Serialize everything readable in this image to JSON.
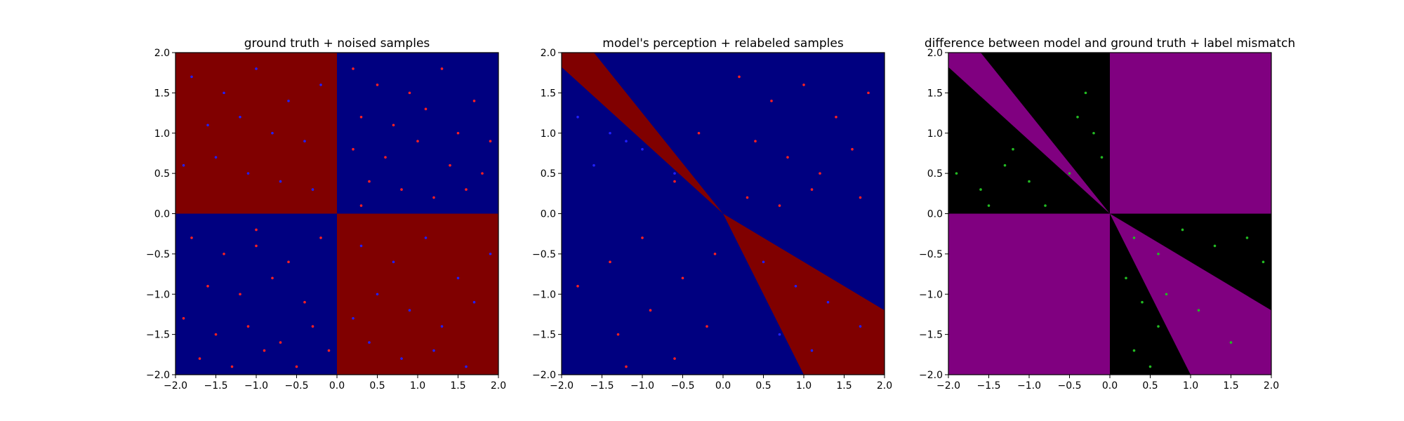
{
  "chart_data": [
    {
      "type": "heatmap",
      "title": "ground truth + noised samples",
      "xlim": [
        -2,
        2
      ],
      "ylim": [
        -2,
        2
      ],
      "xticks": [
        -2.0,
        -1.5,
        -1.0,
        -0.5,
        0.0,
        0.5,
        1.0,
        1.5,
        2.0
      ],
      "yticks": [
        -2.0,
        -1.5,
        -1.0,
        -0.5,
        0.0,
        0.5,
        1.0,
        1.5,
        2.0
      ],
      "xtick_labels": [
        "−2.0",
        "−1.5",
        "−1.0",
        "−0.5",
        "0.0",
        "0.5",
        "1.0",
        "1.5",
        "2.0"
      ],
      "ytick_labels": [
        "−2.0",
        "−1.5",
        "−1.0",
        "−0.5",
        "0.0",
        "0.5",
        "1.0",
        "1.5",
        "2.0"
      ],
      "background": "#000080",
      "regions": [
        {
          "color": "#800000",
          "polygon": [
            [
              -2,
              0
            ],
            [
              0,
              0
            ],
            [
              0,
              2
            ],
            [
              -2,
              2
            ]
          ]
        },
        {
          "color": "#800000",
          "polygon": [
            [
              0,
              -2
            ],
            [
              2,
              -2
            ],
            [
              2,
              0
            ],
            [
              0,
              0
            ]
          ]
        }
      ],
      "series": [
        {
          "color": "#ff2020",
          "values": [
            [
              0.2,
              1.8
            ],
            [
              0.5,
              1.6
            ],
            [
              0.9,
              1.5
            ],
            [
              1.3,
              1.8
            ],
            [
              1.7,
              1.4
            ],
            [
              0.3,
              1.2
            ],
            [
              0.7,
              1.1
            ],
            [
              1.1,
              1.3
            ],
            [
              1.5,
              1.0
            ],
            [
              1.9,
              0.9
            ],
            [
              0.2,
              0.8
            ],
            [
              0.6,
              0.7
            ],
            [
              1.0,
              0.9
            ],
            [
              1.4,
              0.6
            ],
            [
              1.8,
              0.5
            ],
            [
              0.4,
              0.4
            ],
            [
              0.8,
              0.3
            ],
            [
              1.2,
              0.2
            ],
            [
              1.6,
              0.3
            ],
            [
              0.3,
              0.1
            ],
            [
              -1.8,
              -0.3
            ],
            [
              -1.4,
              -0.5
            ],
            [
              -1.0,
              -0.4
            ],
            [
              -0.6,
              -0.6
            ],
            [
              -0.2,
              -0.3
            ],
            [
              -1.6,
              -0.9
            ],
            [
              -1.2,
              -1.0
            ],
            [
              -0.8,
              -0.8
            ],
            [
              -0.4,
              -1.1
            ],
            [
              -1.9,
              -1.3
            ],
            [
              -1.5,
              -1.5
            ],
            [
              -1.1,
              -1.4
            ],
            [
              -0.7,
              -1.6
            ],
            [
              -0.3,
              -1.4
            ],
            [
              -1.7,
              -1.8
            ],
            [
              -1.3,
              -1.9
            ],
            [
              -0.9,
              -1.7
            ],
            [
              -0.5,
              -1.9
            ],
            [
              -0.1,
              -1.7
            ],
            [
              -1.0,
              -0.2
            ]
          ]
        },
        {
          "color": "#2020ff",
          "values": [
            [
              -1.8,
              1.7
            ],
            [
              -1.4,
              1.5
            ],
            [
              -1.0,
              1.8
            ],
            [
              -0.6,
              1.4
            ],
            [
              -0.2,
              1.6
            ],
            [
              -1.6,
              1.1
            ],
            [
              -1.2,
              1.2
            ],
            [
              -0.8,
              1.0
            ],
            [
              -0.4,
              0.9
            ],
            [
              -1.9,
              0.6
            ],
            [
              -1.5,
              0.7
            ],
            [
              -1.1,
              0.5
            ],
            [
              -0.7,
              0.4
            ],
            [
              -0.3,
              0.3
            ],
            [
              0.3,
              -0.4
            ],
            [
              0.7,
              -0.6
            ],
            [
              1.1,
              -0.3
            ],
            [
              1.5,
              -0.8
            ],
            [
              1.9,
              -0.5
            ],
            [
              0.5,
              -1.0
            ],
            [
              0.9,
              -1.2
            ],
            [
              1.3,
              -1.4
            ],
            [
              1.7,
              -1.1
            ],
            [
              0.4,
              -1.6
            ],
            [
              0.8,
              -1.8
            ],
            [
              1.2,
              -1.7
            ],
            [
              1.6,
              -1.9
            ],
            [
              0.2,
              -1.3
            ]
          ]
        }
      ]
    },
    {
      "type": "heatmap",
      "title": "model's perception + relabeled samples",
      "xlim": [
        -2,
        2
      ],
      "ylim": [
        -2,
        2
      ],
      "xticks": [
        -2.0,
        -1.5,
        -1.0,
        -0.5,
        0.0,
        0.5,
        1.0,
        1.5,
        2.0
      ],
      "yticks": [
        -2.0,
        -1.5,
        -1.0,
        -0.5,
        0.0,
        0.5,
        1.0,
        1.5,
        2.0
      ],
      "xtick_labels": [
        "−2.0",
        "−1.5",
        "−1.0",
        "−0.5",
        "0.0",
        "0.5",
        "1.0",
        "1.5",
        "2.0"
      ],
      "ytick_labels": [
        "−2.0",
        "−1.5",
        "−1.0",
        "−0.5",
        "0.0",
        "0.5",
        "1.0",
        "1.5",
        "2.0"
      ],
      "background": "#000080",
      "regions": [
        {
          "color": "#800000",
          "polygon": [
            [
              0,
              0
            ],
            [
              -2,
              1.82
            ],
            [
              -2,
              2
            ],
            [
              -1.6,
              2
            ]
          ]
        },
        {
          "color": "#800000",
          "polygon": [
            [
              0,
              0
            ],
            [
              1.0,
              -2
            ],
            [
              2,
              -2
            ],
            [
              2,
              -1.2
            ]
          ]
        }
      ],
      "series": [
        {
          "color": "#ff2020",
          "values": [
            [
              0.2,
              1.7
            ],
            [
              0.6,
              1.4
            ],
            [
              1.0,
              1.6
            ],
            [
              1.4,
              1.2
            ],
            [
              1.8,
              1.5
            ],
            [
              0.4,
              0.9
            ],
            [
              0.8,
              0.7
            ],
            [
              1.2,
              0.5
            ],
            [
              1.6,
              0.8
            ],
            [
              -0.3,
              1.0
            ],
            [
              -0.6,
              0.4
            ],
            [
              -1.0,
              -0.3
            ],
            [
              -1.4,
              -0.6
            ],
            [
              -1.8,
              -0.9
            ],
            [
              -0.5,
              -0.8
            ],
            [
              -0.9,
              -1.2
            ],
            [
              -1.3,
              -1.5
            ],
            [
              -0.2,
              -1.4
            ],
            [
              -0.6,
              -1.8
            ],
            [
              0.3,
              0.2
            ],
            [
              0.7,
              0.1
            ],
            [
              1.1,
              0.3
            ],
            [
              1.7,
              0.2
            ],
            [
              -1.2,
              -1.9
            ],
            [
              -0.1,
              -0.5
            ]
          ]
        },
        {
          "color": "#2020ff",
          "values": [
            [
              -1.8,
              1.2
            ],
            [
              -1.4,
              1.0
            ],
            [
              -1.0,
              0.8
            ],
            [
              -0.6,
              0.5
            ],
            [
              -1.6,
              0.6
            ],
            [
              -1.2,
              0.9
            ],
            [
              0.5,
              -0.6
            ],
            [
              0.9,
              -0.9
            ],
            [
              1.3,
              -1.1
            ],
            [
              1.7,
              -1.4
            ],
            [
              0.7,
              -1.5
            ],
            [
              1.1,
              -1.7
            ]
          ]
        }
      ]
    },
    {
      "type": "heatmap",
      "title": "difference between model and ground truth + label mismatch",
      "xlim": [
        -2,
        2
      ],
      "ylim": [
        -2,
        2
      ],
      "xticks": [
        -2.0,
        -1.5,
        -1.0,
        -0.5,
        0.0,
        0.5,
        1.0,
        1.5,
        2.0
      ],
      "yticks": [
        -2.0,
        -1.5,
        -1.0,
        -0.5,
        0.0,
        0.5,
        1.0,
        1.5,
        2.0
      ],
      "xtick_labels": [
        "−2.0",
        "−1.5",
        "−1.0",
        "−0.5",
        "0.0",
        "0.5",
        "1.0",
        "1.5",
        "2.0"
      ],
      "ytick_labels": [
        "−2.0",
        "−1.5",
        "−1.0",
        "−0.5",
        "0.0",
        "0.5",
        "1.0",
        "1.5",
        "2.0"
      ],
      "background": "#000000",
      "regions": [
        {
          "color": "#800080",
          "polygon": [
            [
              0,
              0
            ],
            [
              2,
              0
            ],
            [
              2,
              2
            ],
            [
              0,
              2
            ]
          ]
        },
        {
          "color": "#800080",
          "polygon": [
            [
              -2,
              -2
            ],
            [
              0,
              -2
            ],
            [
              0,
              0
            ],
            [
              -2,
              0
            ]
          ]
        },
        {
          "color": "#800080",
          "polygon": [
            [
              0,
              0
            ],
            [
              -2,
              1.82
            ],
            [
              -2,
              2
            ],
            [
              -1.6,
              2
            ]
          ]
        },
        {
          "color": "#800080",
          "polygon": [
            [
              0,
              0
            ],
            [
              1.0,
              -2
            ],
            [
              2,
              -2
            ],
            [
              2,
              -1.2
            ]
          ]
        }
      ],
      "series": [
        {
          "color": "#22bb22",
          "values": [
            [
              -1.9,
              0.5
            ],
            [
              -1.6,
              0.3
            ],
            [
              -1.3,
              0.6
            ],
            [
              -1.0,
              0.4
            ],
            [
              -0.8,
              0.1
            ],
            [
              -1.5,
              0.1
            ],
            [
              -0.4,
              1.2
            ],
            [
              -0.2,
              1.0
            ],
            [
              -0.3,
              1.5
            ],
            [
              -0.1,
              0.7
            ],
            [
              -0.5,
              0.5
            ],
            [
              -1.2,
              0.8
            ],
            [
              0.3,
              -0.3
            ],
            [
              0.6,
              -0.5
            ],
            [
              0.9,
              -0.2
            ],
            [
              1.3,
              -0.4
            ],
            [
              1.7,
              -0.3
            ],
            [
              1.9,
              -0.6
            ],
            [
              0.2,
              -0.8
            ],
            [
              0.4,
              -1.1
            ],
            [
              0.6,
              -1.4
            ],
            [
              0.3,
              -1.7
            ],
            [
              0.7,
              -1.0
            ],
            [
              1.1,
              -1.2
            ],
            [
              1.5,
              -1.6
            ],
            [
              0.5,
              -1.9
            ]
          ]
        }
      ]
    }
  ]
}
